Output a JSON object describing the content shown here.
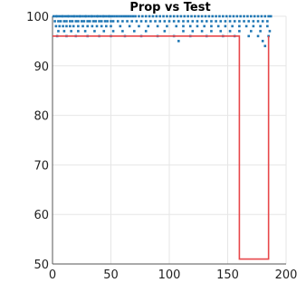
{
  "chart_data": {
    "type": "scatter",
    "title": "Prop vs Test",
    "xlabel": "",
    "ylabel": "",
    "xlim": [
      0,
      200
    ],
    "ylim": [
      50,
      100
    ],
    "x_ticks": [
      0,
      50,
      100,
      150,
      200
    ],
    "y_ticks": [
      50,
      60,
      70,
      80,
      90,
      100
    ],
    "grid": true,
    "legend": "none",
    "series": [
      {
        "style": "points",
        "color": "#1f77b4",
        "rows": [
          {
            "y": 100,
            "x": [
              1,
              3,
              4,
              6,
              8,
              9,
              11,
              13,
              14,
              16,
              18,
              19,
              21,
              23,
              24,
              26,
              28,
              29,
              31,
              33,
              34,
              36,
              38,
              39,
              41,
              43,
              44,
              46,
              48,
              49,
              51,
              53,
              55,
              57,
              59,
              61,
              63,
              65,
              67,
              69,
              71,
              74,
              77,
              80,
              83,
              86,
              89,
              92,
              95,
              98,
              101,
              104,
              107,
              110,
              113,
              116,
              119,
              122,
              125,
              128,
              131,
              134,
              137,
              140,
              143,
              146,
              149,
              152,
              155,
              158,
              161,
              164,
              167,
              170,
              173,
              176,
              179,
              182,
              185,
              187
            ]
          },
          {
            "y": 99,
            "x": [
              2,
              5,
              7,
              10,
              12,
              15,
              17,
              20,
              22,
              25,
              27,
              30,
              32,
              35,
              37,
              40,
              42,
              45,
              47,
              50,
              52,
              56,
              60,
              64,
              68,
              72,
              76,
              80,
              84,
              88,
              92,
              96,
              100,
              104,
              108,
              112,
              116,
              120,
              124,
              128,
              132,
              136,
              140,
              144,
              148,
              152,
              156,
              160,
              164,
              168,
              172,
              176,
              180,
              184
            ]
          },
          {
            "y": 98,
            "x": [
              3,
              6,
              9,
              12,
              15,
              18,
              22,
              26,
              30,
              34,
              38,
              42,
              46,
              50,
              58,
              66,
              74,
              82,
              90,
              98,
              106,
              112,
              118,
              124,
              130,
              136,
              142,
              148,
              154,
              160,
              166,
              172,
              178,
              184
            ]
          },
          {
            "y": 97,
            "x": [
              5,
              10,
              16,
              22,
              28,
              36,
              44,
              52,
              60,
              70,
              80,
              96,
              112,
              120,
              128,
              136,
              144,
              152,
              160,
              170,
              178,
              186
            ]
          },
          {
            "y": 96,
            "x": [
              4,
              12,
              20,
              30,
              40,
              50,
              62,
              76,
              90,
              104,
              118,
              132,
              146,
              156,
              168,
              176,
              185
            ]
          },
          {
            "y": 95,
            "x": [
              108,
              180
            ]
          },
          {
            "y": 94,
            "x": [
              182
            ]
          }
        ]
      },
      {
        "style": "line",
        "color": "#e8474a",
        "x": [
          0,
          160,
          160,
          185,
          185
        ],
        "y": [
          96,
          96,
          51,
          51,
          96
        ]
      }
    ]
  }
}
